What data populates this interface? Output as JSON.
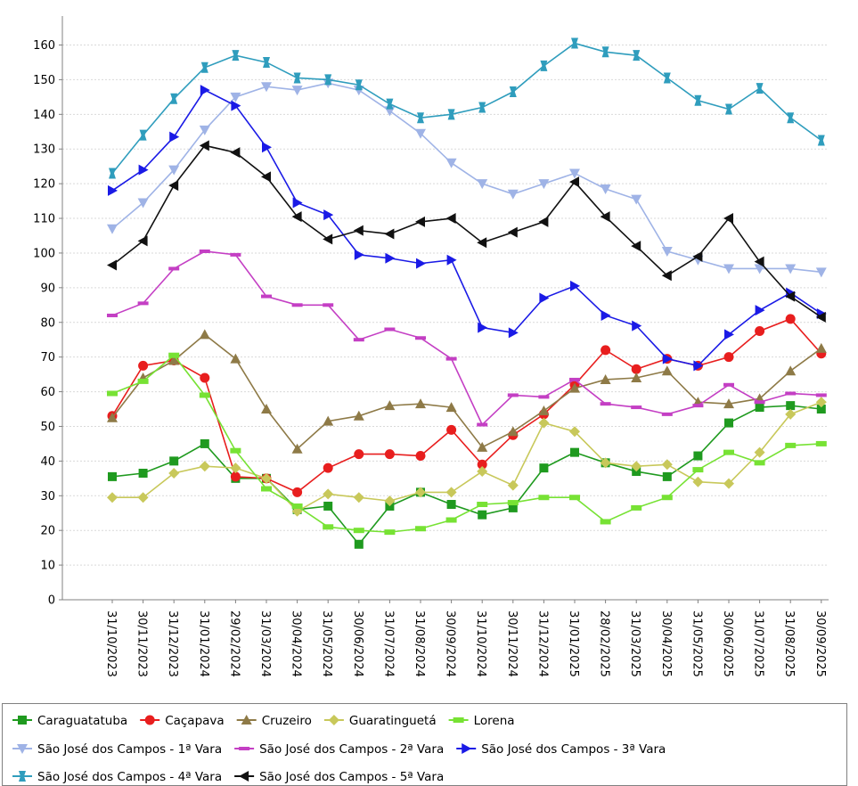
{
  "chart_data": {
    "type": "line",
    "title": "",
    "xlabel": "",
    "ylabel": "",
    "ylim": [
      0,
      160
    ],
    "yticks": [
      0,
      10,
      20,
      30,
      40,
      50,
      60,
      70,
      80,
      90,
      100,
      110,
      120,
      130,
      140,
      150,
      160
    ],
    "grid": true,
    "legend_position": "bottom",
    "categories": [
      "31/10/2023",
      "30/11/2023",
      "31/12/2023",
      "31/01/2024",
      "29/02/2024",
      "31/03/2024",
      "30/04/2024",
      "31/05/2024",
      "30/06/2024",
      "31/07/2024",
      "31/08/2024",
      "30/09/2024",
      "31/10/2024",
      "30/11/2024",
      "31/12/2024",
      "31/01/2025",
      "28/02/2025",
      "31/03/2025",
      "30/04/2025",
      "31/05/2025",
      "30/06/2025",
      "31/07/2025",
      "31/08/2025",
      "30/09/2025"
    ],
    "series": [
      {
        "name": "Caraguatatuba",
        "color": "#1f9a1f",
        "marker": "square",
        "values": [
          35.5,
          36.5,
          40,
          45,
          35,
          35,
          26,
          27,
          16,
          27,
          31,
          27.5,
          24.5,
          26.5,
          38,
          42.5,
          39.5,
          37,
          35.5,
          41.5,
          51,
          55.5,
          56,
          55
        ]
      },
      {
        "name": "Caçapava",
        "color": "#e81e1e",
        "marker": "circle",
        "values": [
          53,
          67.5,
          69,
          64,
          35.5,
          35,
          31,
          38,
          42,
          42,
          41.5,
          49,
          39,
          47.5,
          53.5,
          62,
          72,
          66.5,
          69.5,
          67.5,
          70,
          77.5,
          81,
          71
        ]
      },
      {
        "name": "Cruzeiro",
        "color": "#8e7a47",
        "marker": "triangle-up",
        "values": [
          52.5,
          64,
          69,
          76.5,
          69.5,
          55,
          43.5,
          51.5,
          53,
          56,
          56.5,
          55.5,
          44,
          48.5,
          54.5,
          61,
          63.5,
          64,
          66,
          57,
          56.5,
          58,
          66,
          72.5
        ]
      },
      {
        "name": "Guaratinguetá",
        "color": "#c8c85a",
        "marker": "diamond",
        "values": [
          29.5,
          29.5,
          36.5,
          38.5,
          38,
          35,
          25.5,
          30.5,
          29.5,
          28.5,
          31,
          31,
          37,
          33,
          51,
          48.5,
          39.5,
          38.5,
          39,
          34,
          33.5,
          42.5,
          53.5,
          57
        ]
      },
      {
        "name": "Lorena",
        "color": "#77e234",
        "marker": "bar",
        "values": [
          59.5,
          63,
          70.5,
          59,
          43,
          32,
          27,
          21,
          20,
          19.5,
          20.5,
          23,
          27.5,
          28,
          29.5,
          29.5,
          22.5,
          26.5,
          29.5,
          37.5,
          42.5,
          39.5,
          44.5,
          45
        ]
      },
      {
        "name": "São José dos Campos - 1ª Vara",
        "color": "#9fb3e6",
        "marker": "triangle-down",
        "values": [
          107,
          114.5,
          124,
          135.5,
          145,
          148,
          147,
          149,
          147,
          141,
          134.5,
          126,
          120,
          117,
          120,
          123,
          118.5,
          115.5,
          100.5,
          98,
          95.5,
          95.5,
          95.5,
          94.5
        ]
      },
      {
        "name": "São José dos Campos - 2ª Vara",
        "color": "#c43fc4",
        "marker": "dash",
        "values": [
          82,
          85.5,
          95.5,
          100.5,
          99.5,
          87.5,
          85,
          85,
          75,
          78,
          75.5,
          69.5,
          50.5,
          59,
          58.5,
          63.5,
          56.5,
          55.5,
          53.5,
          56,
          62,
          57,
          59.5,
          59
        ]
      },
      {
        "name": "São José dos Campos - 3ª Vara",
        "color": "#1a1ae6",
        "marker": "triangle-right",
        "values": [
          118,
          124,
          133.5,
          147,
          142.5,
          130.5,
          114.5,
          111,
          99.5,
          98.5,
          97,
          98,
          78.5,
          77,
          87,
          90.5,
          82,
          79,
          69.5,
          67.5,
          76.5,
          83.5,
          88.5,
          82.5
        ]
      },
      {
        "name": "São José dos Campos - 4ª Vara",
        "color": "#2f9dbd",
        "marker": "hourglass",
        "values": [
          123,
          134,
          144.5,
          153.5,
          157,
          155,
          150.5,
          150,
          148.5,
          143,
          139,
          140,
          142,
          146.5,
          154,
          160.5,
          158,
          157,
          150.5,
          144,
          141.5,
          147.5,
          139,
          132.5
        ]
      },
      {
        "name": "São José dos Campos - 5ª Vara",
        "color": "#111111",
        "marker": "triangle-left",
        "values": [
          96.5,
          103.5,
          119.5,
          131,
          129,
          122,
          110.5,
          104,
          106.5,
          105.5,
          109,
          110,
          103,
          106,
          109,
          120.5,
          110.5,
          102,
          93.5,
          99,
          110,
          97.5,
          87.5,
          81.5
        ]
      }
    ]
  }
}
